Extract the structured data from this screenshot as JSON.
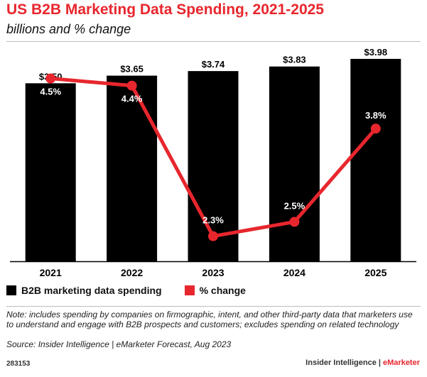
{
  "chart_data": {
    "type": "bar",
    "title": "US B2B Marketing Data Spending, 2021-2025",
    "subtitle": "billions and % change",
    "categories": [
      "2021",
      "2022",
      "2023",
      "2024",
      "2025"
    ],
    "series": [
      {
        "name": "B2B marketing data spending",
        "kind": "bar",
        "values": [
          3.5,
          3.65,
          3.74,
          3.83,
          3.98
        ],
        "labels": [
          "$3.50",
          "$3.65",
          "$3.74",
          "$3.83",
          "$3.98"
        ]
      },
      {
        "name": "% change",
        "kind": "line",
        "values": [
          4.5,
          4.4,
          2.3,
          2.5,
          3.8
        ],
        "labels": [
          "4.5%",
          "4.4%",
          "2.3%",
          "2.5%",
          "3.8%"
        ]
      }
    ],
    "bar_ylim": [
      0,
      4.3
    ],
    "line_ylim": [
      1.95,
      5.0
    ],
    "legend_position": "bottom-left",
    "colors": {
      "bar": "#000000",
      "line": "#e8262d",
      "axis": "#000000"
    }
  },
  "legend": {
    "items": [
      {
        "label": "B2B marketing data spending",
        "color": "#000000"
      },
      {
        "label": "% change",
        "color": "#e8262d"
      }
    ]
  },
  "note": "Note: includes spending by companies on firmographic, intent, and other third-party data that marketers use to understand and engage with B2B prospects and customers; excludes spending on related technology",
  "source": "Source: Insider Intelligence | eMarketer Forecast, Aug 2023",
  "footer": {
    "chart_id": "283153",
    "brand_primary": "Insider Intelligence | ",
    "brand_secondary": "eMarketer"
  }
}
